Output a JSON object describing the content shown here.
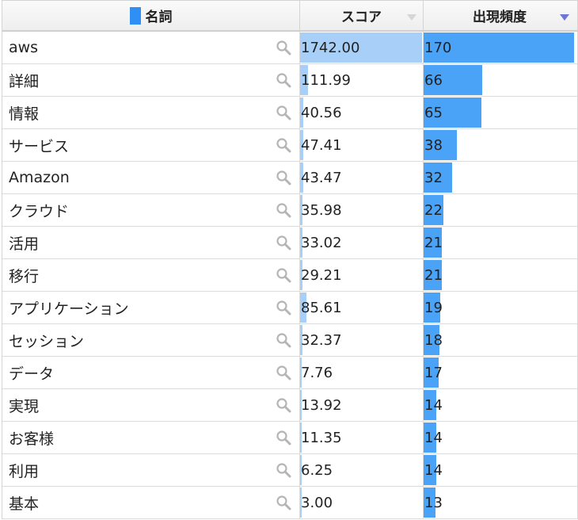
{
  "header": {
    "col_term": "名詞",
    "col_score": "スコア",
    "col_freq": "出現頻度",
    "marker_color": "#2f8ff5",
    "sorted_column": "出現頻度",
    "sort_direction": "descending"
  },
  "bar_colors": {
    "score": "#a8cff8",
    "freq": "#4aa3f7"
  },
  "scale": {
    "score_max": 1742.0,
    "freq_max": 170
  },
  "rows": [
    {
      "term": "aws",
      "score": "1742.00",
      "freq": "170"
    },
    {
      "term": "詳細",
      "score": "111.99",
      "freq": "66"
    },
    {
      "term": "情報",
      "score": "40.56",
      "freq": "65"
    },
    {
      "term": "サービス",
      "score": "47.41",
      "freq": "38"
    },
    {
      "term": "Amazon",
      "score": "43.47",
      "freq": "32"
    },
    {
      "term": "クラウド",
      "score": "35.98",
      "freq": "22"
    },
    {
      "term": "活用",
      "score": "33.02",
      "freq": "21"
    },
    {
      "term": "移行",
      "score": "29.21",
      "freq": "21"
    },
    {
      "term": "アプリケーション",
      "score": "85.61",
      "freq": "19"
    },
    {
      "term": "セッション",
      "score": "32.37",
      "freq": "18"
    },
    {
      "term": "データ",
      "score": "7.76",
      "freq": "17"
    },
    {
      "term": "実現",
      "score": "13.92",
      "freq": "14"
    },
    {
      "term": "お客様",
      "score": "11.35",
      "freq": "14"
    },
    {
      "term": "利用",
      "score": "6.25",
      "freq": "14"
    },
    {
      "term": "基本",
      "score": "3.00",
      "freq": "13"
    }
  ]
}
